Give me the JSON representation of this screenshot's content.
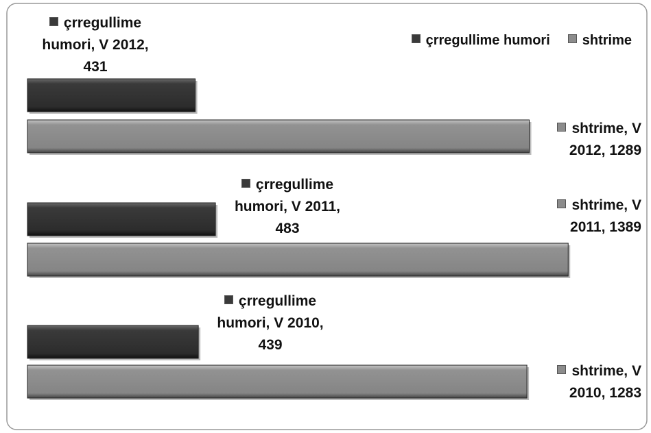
{
  "chart_data": {
    "type": "bar",
    "orientation": "horizontal",
    "categories": [
      "V 2012",
      "V 2011",
      "V 2010"
    ],
    "series": [
      {
        "name": "çrregullime humori",
        "color": "#3a3a3a",
        "values": [
          431,
          483,
          439
        ],
        "value_labels": [
          "çrregullime humori, V 2012, 431",
          "çrregullime humori, V 2011, 483",
          "çrregullime humori, V 2010, 439"
        ]
      },
      {
        "name": "shtrime",
        "color": "#8c8c8c",
        "values": [
          1289,
          1389,
          1283
        ],
        "value_labels": [
          "shtrime, V 2012, 1289",
          "shtrime, V 2011, 1389",
          "shtrime, V 2010, 1283"
        ]
      }
    ],
    "legend": "top-right"
  }
}
